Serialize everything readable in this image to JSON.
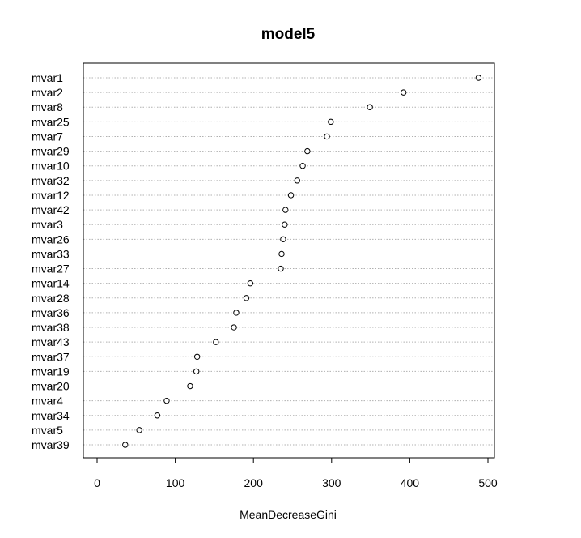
{
  "chart_data": {
    "type": "scatter",
    "title": "model5",
    "xlabel": "MeanDecreaseGini",
    "ylabel": "",
    "xlim": [
      -20,
      510
    ],
    "x_ticks": [
      0,
      100,
      200,
      300,
      400,
      500
    ],
    "grid": "horizontal dotted lines per category",
    "categories": [
      "mvar1",
      "mvar2",
      "mvar8",
      "mvar25",
      "mvar7",
      "mvar29",
      "mvar10",
      "mvar32",
      "mvar12",
      "mvar42",
      "mvar3",
      "mvar26",
      "mvar33",
      "mvar27",
      "mvar14",
      "mvar28",
      "mvar36",
      "mvar38",
      "mvar43",
      "mvar37",
      "mvar19",
      "mvar20",
      "mvar4",
      "mvar34",
      "mvar5",
      "mvar39"
    ],
    "values": [
      488,
      392,
      349,
      299,
      294,
      269,
      263,
      256,
      248,
      241,
      240,
      238,
      236,
      235,
      196,
      191,
      178,
      175,
      152,
      128,
      127,
      119,
      89,
      77,
      54,
      36
    ]
  }
}
